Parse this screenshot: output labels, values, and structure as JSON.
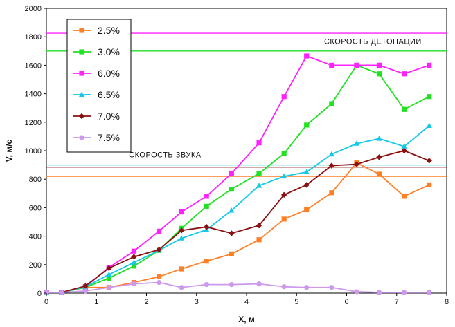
{
  "chart_data": {
    "type": "line",
    "xlabel": "X, м",
    "ylabel": "V, м/с",
    "xlim": [
      0,
      8
    ],
    "ylim": [
      0,
      2000
    ],
    "xticks": [
      "0",
      "1",
      "2",
      "3",
      "4",
      "5",
      "6",
      "7",
      "8"
    ],
    "yticks": [
      "0",
      "200",
      "400",
      "600",
      "800",
      "1000",
      "1200",
      "1400",
      "1600",
      "1800",
      "2000"
    ],
    "x": [
      0,
      0.3,
      0.78,
      1.25,
      1.75,
      2.25,
      2.7,
      3.2,
      3.7,
      4.25,
      4.75,
      5.2,
      5.7,
      6.2,
      6.65,
      7.15,
      7.65
    ],
    "series": [
      {
        "name": "2.5%",
        "color": "#ff7f27",
        "marker": "square",
        "values": [
          5,
          5,
          40,
          40,
          75,
          115,
          170,
          225,
          275,
          375,
          520,
          585,
          705,
          915,
          835,
          680,
          760
        ]
      },
      {
        "name": "3.0%",
        "color": "#22e022",
        "marker": "square",
        "values": [
          5,
          5,
          40,
          105,
          190,
          300,
          455,
          610,
          730,
          840,
          980,
          1180,
          1330,
          1600,
          1540,
          1290,
          1380
        ]
      },
      {
        "name": "6.0%",
        "color": "#ff22ff",
        "marker": "square",
        "values": [
          5,
          5,
          45,
          180,
          295,
          435,
          570,
          680,
          840,
          1055,
          1380,
          1665,
          1600,
          1600,
          1600,
          1540,
          1600
        ]
      },
      {
        "name": "6.5%",
        "color": "#11c8e8",
        "marker": "triangle",
        "values": [
          5,
          5,
          45,
          130,
          215,
          300,
          385,
          445,
          580,
          755,
          820,
          850,
          975,
          1050,
          1085,
          1030,
          1175
        ]
      },
      {
        "name": "7.0%",
        "color": "#8b1010",
        "marker": "diamond",
        "values": [
          5,
          5,
          50,
          175,
          255,
          305,
          440,
          465,
          420,
          475,
          690,
          760,
          895,
          905,
          955,
          1000,
          930
        ]
      },
      {
        "name": "7.5%",
        "color": "#cc99ee",
        "marker": "circle",
        "values": [
          5,
          5,
          15,
          40,
          65,
          75,
          40,
          60,
          60,
          65,
          45,
          40,
          40,
          10,
          5,
          5,
          5
        ]
      }
    ],
    "reference_lines": [
      {
        "label": "Скорость детонации",
        "color": "#ff22ff",
        "y": 1825
      },
      {
        "label": "",
        "color": "#22e022",
        "y": 1700
      },
      {
        "label": "Скорость звука",
        "color": "#11c8e8",
        "y": 900
      },
      {
        "label": "",
        "color": "#8b1010",
        "y": 885
      },
      {
        "label": "",
        "color": "#ff7f27",
        "y": 820
      }
    ],
    "annotations": [
      {
        "text": "СКОРОСТЬ ДЕТОНАЦИИ",
        "x": 5.55,
        "y": 1750
      },
      {
        "text": "СКОРОСТЬ ЗВУКА",
        "x": 1.65,
        "y": 955
      }
    ],
    "legend_position": "top-left"
  }
}
